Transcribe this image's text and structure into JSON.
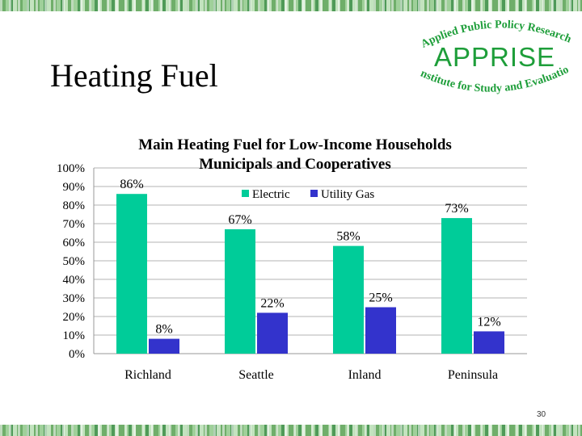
{
  "slide": {
    "title": "Heating Fuel",
    "number": "30"
  },
  "logo": {
    "arc_top": "Applied Public Policy Research",
    "name": "APPRISE",
    "arc_bottom": "Institute for Study and Evaluation",
    "color": "#1e9e3a"
  },
  "chart_data": {
    "type": "bar",
    "title": "Main Heating Fuel for Low-Income Households",
    "subtitle": "Municipals and Cooperatives",
    "xlabel": "",
    "ylabel": "",
    "categories": [
      "Richland",
      "Seattle",
      "Inland",
      "Peninsula"
    ],
    "series": [
      {
        "name": "Electric",
        "values": [
          86,
          67,
          58,
          73
        ],
        "labels": [
          "86%",
          "67%",
          "58%",
          "73%"
        ],
        "color": "#00cc99"
      },
      {
        "name": "Utility Gas",
        "values": [
          8,
          22,
          25,
          12
        ],
        "labels": [
          "8%",
          "22%",
          "25%",
          "12%"
        ],
        "color": "#3333cc"
      }
    ],
    "ylim": [
      0,
      100
    ],
    "yticks": [
      "0%",
      "10%",
      "20%",
      "30%",
      "40%",
      "50%",
      "60%",
      "70%",
      "80%",
      "90%",
      "100%"
    ],
    "grid": true,
    "legend": "top-center"
  }
}
